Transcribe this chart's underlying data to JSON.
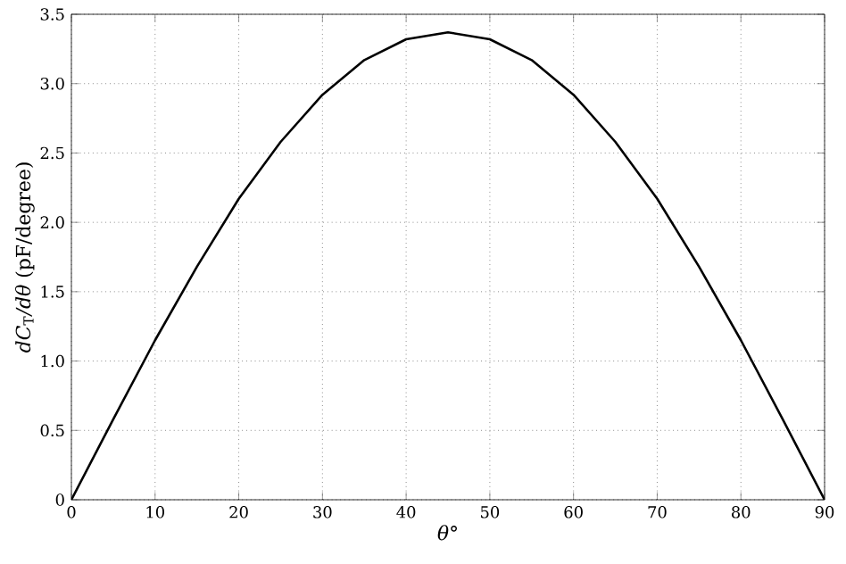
{
  "chart_data": {
    "type": "line",
    "xlabel": "*θ*°",
    "ylabel": "*dC*$_{T}$*/dθ* (pF/degree)",
    "x": [
      0,
      5,
      10,
      15,
      20,
      25,
      30,
      35,
      40,
      45,
      50,
      55,
      60,
      65,
      70,
      75,
      80,
      85,
      90
    ],
    "series": [
      {
        "color": "#000000",
        "values": [
          0,
          0.58,
          1.15,
          1.68,
          2.17,
          2.58,
          2.92,
          3.17,
          3.32,
          3.37,
          3.32,
          3.17,
          2.92,
          2.58,
          2.17,
          1.68,
          1.15,
          0.58,
          0
        ]
      }
    ],
    "xlim": [
      0,
      90
    ],
    "ylim": [
      0,
      3.5
    ],
    "xticks": [
      0,
      10,
      20,
      30,
      40,
      50,
      60,
      70,
      80,
      90
    ],
    "yticks": [
      0,
      0.5,
      {
        "value": 1,
        "label": "1.0"
      },
      1.5,
      {
        "value": 2,
        "label": "2.0"
      },
      2.5,
      {
        "value": 3,
        "label": "3.0"
      },
      3.5
    ],
    "grid": true,
    "line_style": "solid",
    "marker": "none"
  }
}
